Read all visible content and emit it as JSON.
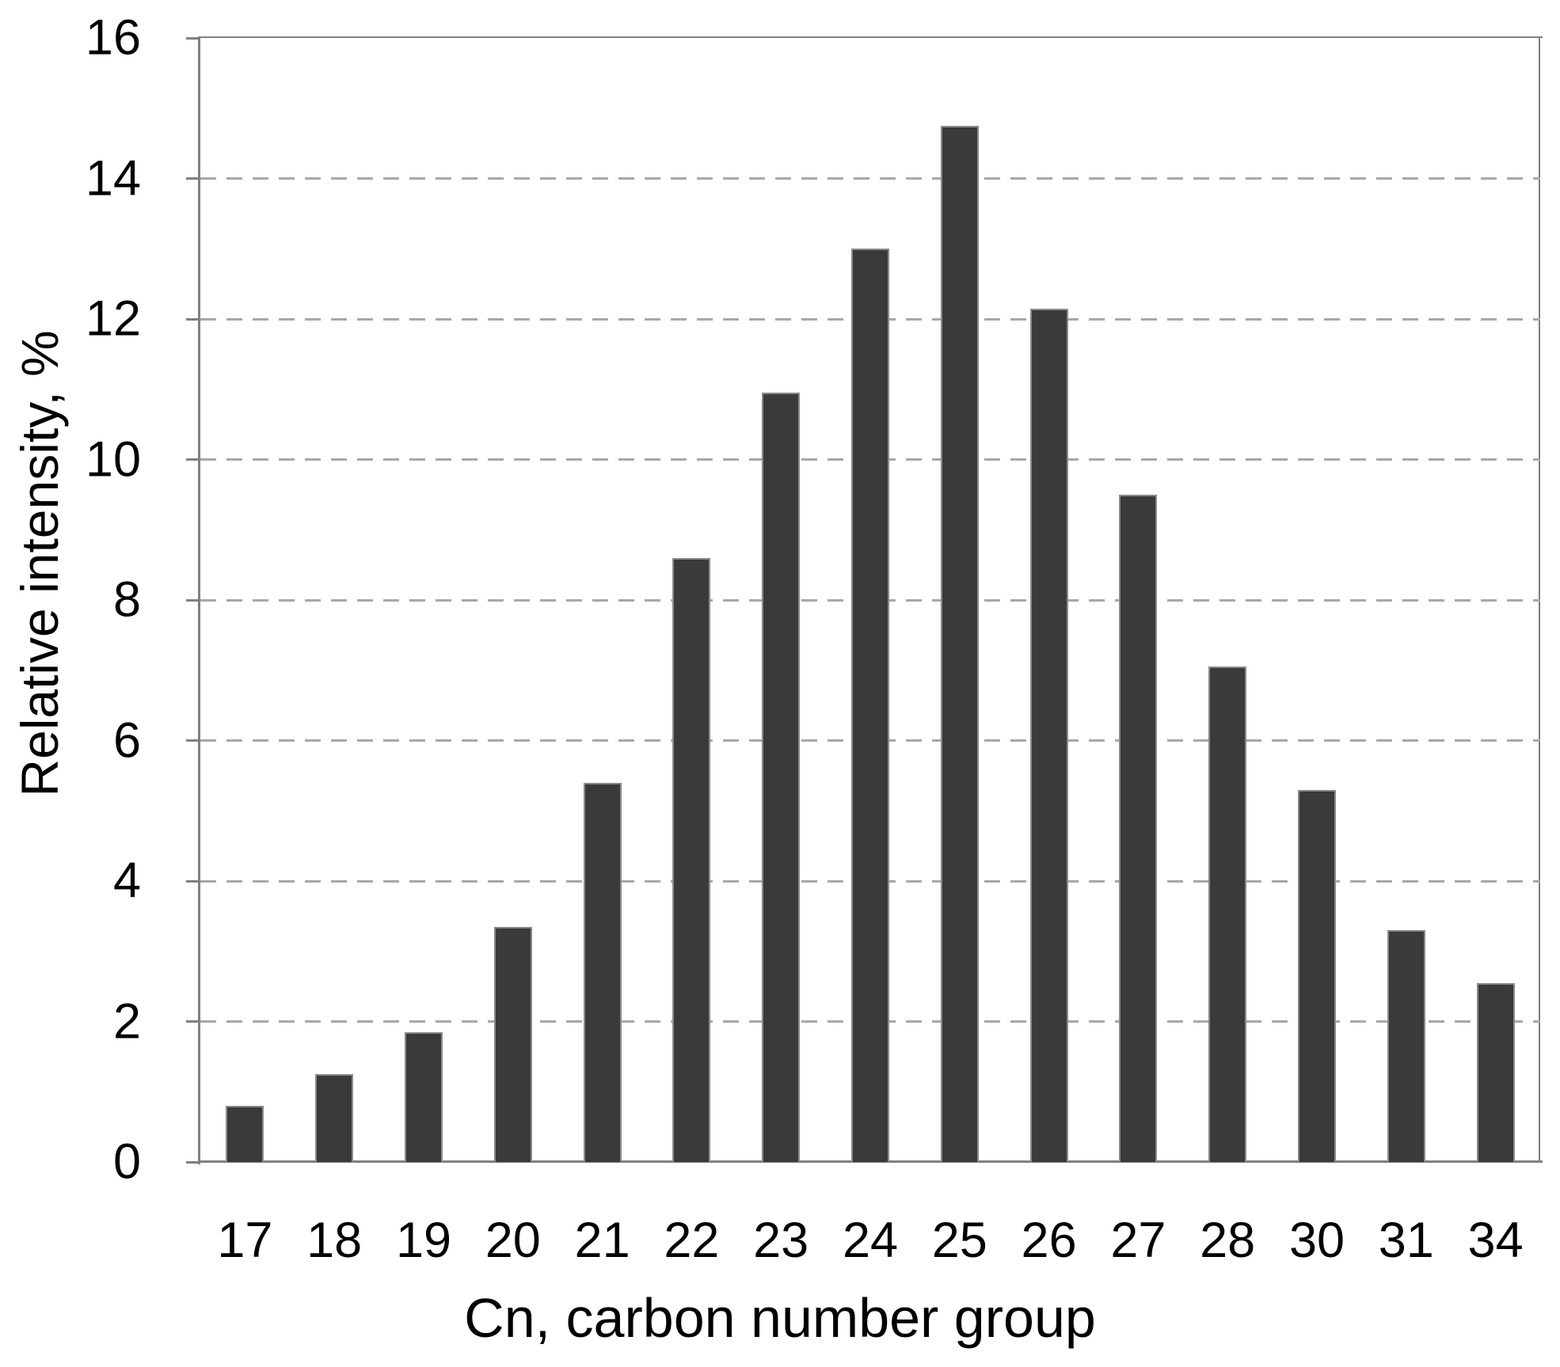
{
  "chart_data": {
    "type": "bar",
    "title": "",
    "categories": [
      "17",
      "18",
      "19",
      "20",
      "21",
      "22",
      "23",
      "24",
      "25",
      "26",
      "27",
      "28",
      "30",
      "31",
      "34"
    ],
    "values": [
      0.8,
      1.25,
      1.85,
      3.35,
      5.4,
      8.6,
      10.95,
      13.0,
      14.75,
      12.15,
      9.5,
      7.05,
      5.3,
      3.3,
      2.55
    ],
    "xlabel": "Cn, carbon number group",
    "ylabel": "Relative intensity, %",
    "ylim": [
      0,
      16
    ],
    "yticks": [
      0,
      2,
      4,
      6,
      8,
      10,
      12,
      14,
      16
    ],
    "gridlines": {
      "style": "dashed",
      "at": [
        2,
        4,
        6,
        8,
        10,
        12,
        14
      ],
      "color": "#a8a8a8"
    },
    "legend": "none",
    "colors": {
      "bar_fill": "#3a3a3a",
      "bar_border": "#8a8a8a",
      "axis": "#808080",
      "text": "#000000",
      "background": "#ffffff"
    }
  }
}
